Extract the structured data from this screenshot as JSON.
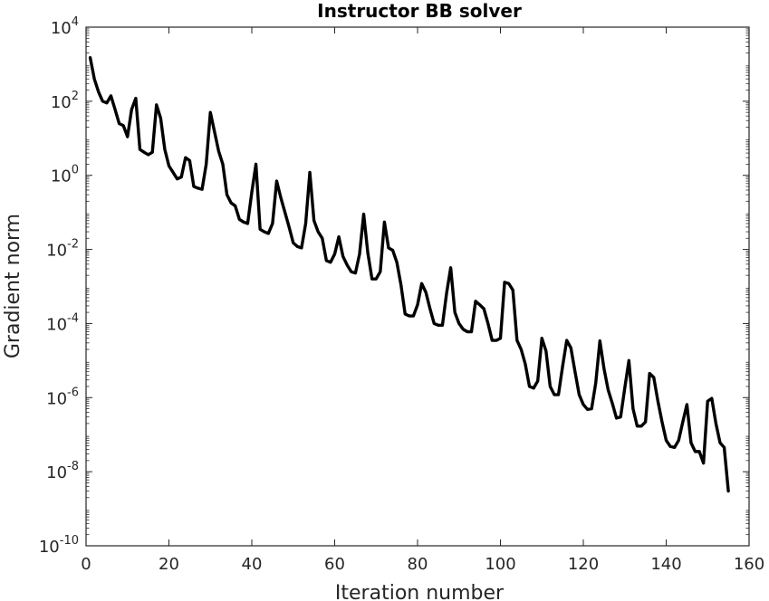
{
  "chart_data": {
    "type": "line",
    "title": "Instructor BB solver",
    "xlabel": "Iteration number",
    "ylabel": "Gradient norm",
    "xscale": "linear",
    "yscale": "log",
    "xlim": [
      0,
      160
    ],
    "ylim": [
      1e-10,
      10000.0
    ],
    "xticks": [
      0,
      20,
      40,
      60,
      80,
      100,
      120,
      140,
      160
    ],
    "xtick_labels": [
      "0",
      "20",
      "40",
      "60",
      "80",
      "100",
      "120",
      "140",
      "160"
    ],
    "yticks": [
      1e-10,
      1e-08,
      1e-06,
      0.0001,
      0.01,
      1,
      100.0,
      10000.0
    ],
    "ytick_labels": [
      {
        "base": "10",
        "exp": "-10"
      },
      {
        "base": "10",
        "exp": "-8"
      },
      {
        "base": "10",
        "exp": "-6"
      },
      {
        "base": "10",
        "exp": "-4"
      },
      {
        "base": "10",
        "exp": "-2"
      },
      {
        "base": "10",
        "exp": "0"
      },
      {
        "base": "10",
        "exp": "2"
      },
      {
        "base": "10",
        "exp": "4"
      }
    ],
    "grid": false,
    "box": true,
    "line_color": "#000000",
    "series": [
      {
        "x": [
          1,
          2,
          3,
          4,
          5,
          6,
          7,
          8,
          9,
          10,
          11,
          12,
          13,
          14,
          15,
          16,
          17,
          18,
          19,
          20,
          21,
          22,
          23,
          24,
          25,
          26,
          27,
          28,
          29,
          30,
          31,
          32,
          33,
          34,
          35,
          36,
          37,
          38,
          39,
          40,
          41,
          42,
          43,
          44,
          45,
          46,
          47,
          48,
          49,
          50,
          51,
          52,
          53,
          54,
          55,
          56,
          57,
          58,
          59,
          60,
          61,
          62,
          63,
          64,
          65,
          66,
          67,
          68,
          69,
          70,
          71,
          72,
          73,
          74,
          75,
          76,
          77,
          78,
          79,
          80,
          81,
          82,
          83,
          84,
          85,
          86,
          87,
          88,
          89,
          90,
          91,
          92,
          93,
          94,
          95,
          96,
          97,
          98,
          99,
          100,
          101,
          102,
          103,
          104,
          105,
          106,
          107,
          108,
          109,
          110,
          111,
          112,
          113,
          114,
          115,
          116,
          117,
          118,
          119,
          120,
          121,
          122,
          123,
          124,
          125,
          126,
          127,
          128,
          129,
          130,
          131,
          132,
          133,
          134,
          135,
          136,
          137,
          138,
          139,
          140,
          141,
          142,
          143,
          144,
          145,
          146,
          147,
          148,
          149,
          150,
          151,
          152,
          153,
          154,
          155
        ],
        "y": [
          1500.0,
          400.0,
          180.0,
          100.0,
          90,
          140.0,
          60,
          25,
          22,
          11,
          60,
          120.0,
          5,
          4.2,
          3.6,
          4.2,
          80,
          35,
          5,
          1.8,
          1.2,
          0.8,
          0.9,
          3,
          2.5,
          0.5,
          0.45,
          0.42,
          2,
          50,
          15,
          4.5,
          2,
          0.3,
          0.18,
          0.15,
          0.065,
          0.055,
          0.05,
          0.35,
          2,
          0.035,
          0.03,
          0.027,
          0.05,
          0.7,
          0.25,
          0.1,
          0.04,
          0.015,
          0.012,
          0.011,
          0.05,
          1.2,
          0.06,
          0.03,
          0.02,
          0.005,
          0.0045,
          0.0075,
          0.022,
          0.0065,
          0.0038,
          0.0025,
          0.0023,
          0.0075,
          0.09,
          0.008,
          0.0016,
          0.0016,
          0.0025,
          0.055,
          0.011,
          0.0095,
          0.0045,
          0.0011,
          0.00018,
          0.00016,
          0.00016,
          0.00032,
          0.0012,
          0.0007,
          0.00025,
          0.0001,
          9e-05,
          9e-05,
          0.00065,
          0.0032,
          0.0002,
          0.0001,
          7e-05,
          6e-05,
          6e-05,
          0.0004,
          0.00032,
          0.00025,
          0.0001,
          3.5e-05,
          3.5e-05,
          4e-05,
          0.0013,
          0.0012,
          0.0008,
          3.5e-05,
          2e-05,
          8e-06,
          2e-06,
          1.8e-06,
          2.8e-06,
          4e-05,
          1.8e-05,
          2e-06,
          1.2e-06,
          1.2e-06,
          7e-06,
          3.5e-05,
          2.2e-05,
          5e-06,
          1.2e-06,
          6.5e-07,
          4.8e-07,
          5e-07,
          2.5e-06,
          3.4e-05,
          6e-06,
          1.6e-06,
          7e-07,
          2.8e-07,
          3e-07,
          1.8e-06,
          1e-05,
          5e-07,
          1.7e-07,
          1.7e-07,
          2.2e-07,
          4.5e-06,
          3.5e-06,
          8e-07,
          2.2e-07,
          7e-08,
          4.8e-08,
          4.5e-08,
          7e-08,
          2.2e-07,
          6.5e-07,
          6e-08,
          3.5e-08,
          3.5e-08,
          1.7e-08,
          8e-07,
          9.5e-07,
          2e-07,
          6e-08,
          4.5e-08,
          3e-09
        ]
      }
    ]
  }
}
